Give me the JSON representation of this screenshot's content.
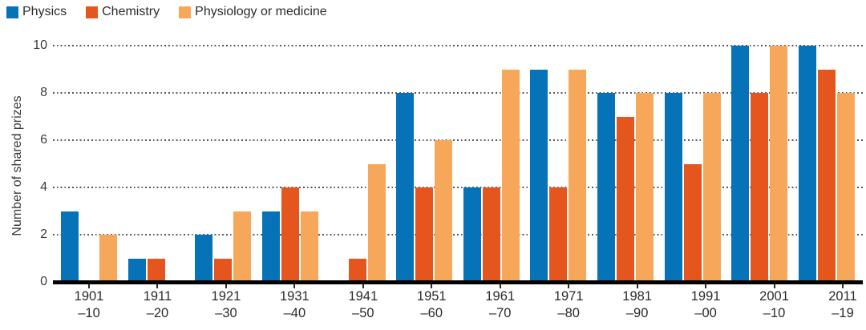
{
  "chart_data": {
    "type": "bar",
    "title": "",
    "ylabel": "Number of shared prizes",
    "xlabel": "",
    "ylim": [
      0,
      10
    ],
    "yticks": [
      0,
      2,
      4,
      6,
      8,
      10
    ],
    "grid": "horizontal dotted lines at even values",
    "legend_position": "top-left",
    "categories": [
      [
        "1901",
        "–10"
      ],
      [
        "1911",
        "–20"
      ],
      [
        "1921",
        "–30"
      ],
      [
        "1931",
        "–40"
      ],
      [
        "1941",
        "–50"
      ],
      [
        "1951",
        "–60"
      ],
      [
        "1961",
        "–70"
      ],
      [
        "1971",
        "–80"
      ],
      [
        "1981",
        "–90"
      ],
      [
        "1991",
        "–00"
      ],
      [
        "2001",
        "–10"
      ],
      [
        "2011",
        "–19"
      ]
    ],
    "series": [
      {
        "name": "Physics",
        "color": "#0672b8",
        "values": [
          3,
          1,
          2,
          3,
          0,
          8,
          4,
          9,
          8,
          8,
          10,
          10
        ]
      },
      {
        "name": "Chemistry",
        "color": "#e5551e",
        "values": [
          0,
          1,
          1,
          4,
          1,
          4,
          4,
          4,
          7,
          5,
          8,
          9
        ]
      },
      {
        "name": "Physiology or medicine",
        "color": "#f7a75a",
        "values": [
          2,
          0,
          3,
          3,
          5,
          6,
          9,
          9,
          8,
          8,
          10,
          8
        ]
      }
    ],
    "colors": {
      "axis_line": "#000000",
      "gridline": "#55565a",
      "text": "#2b2b2b"
    }
  }
}
